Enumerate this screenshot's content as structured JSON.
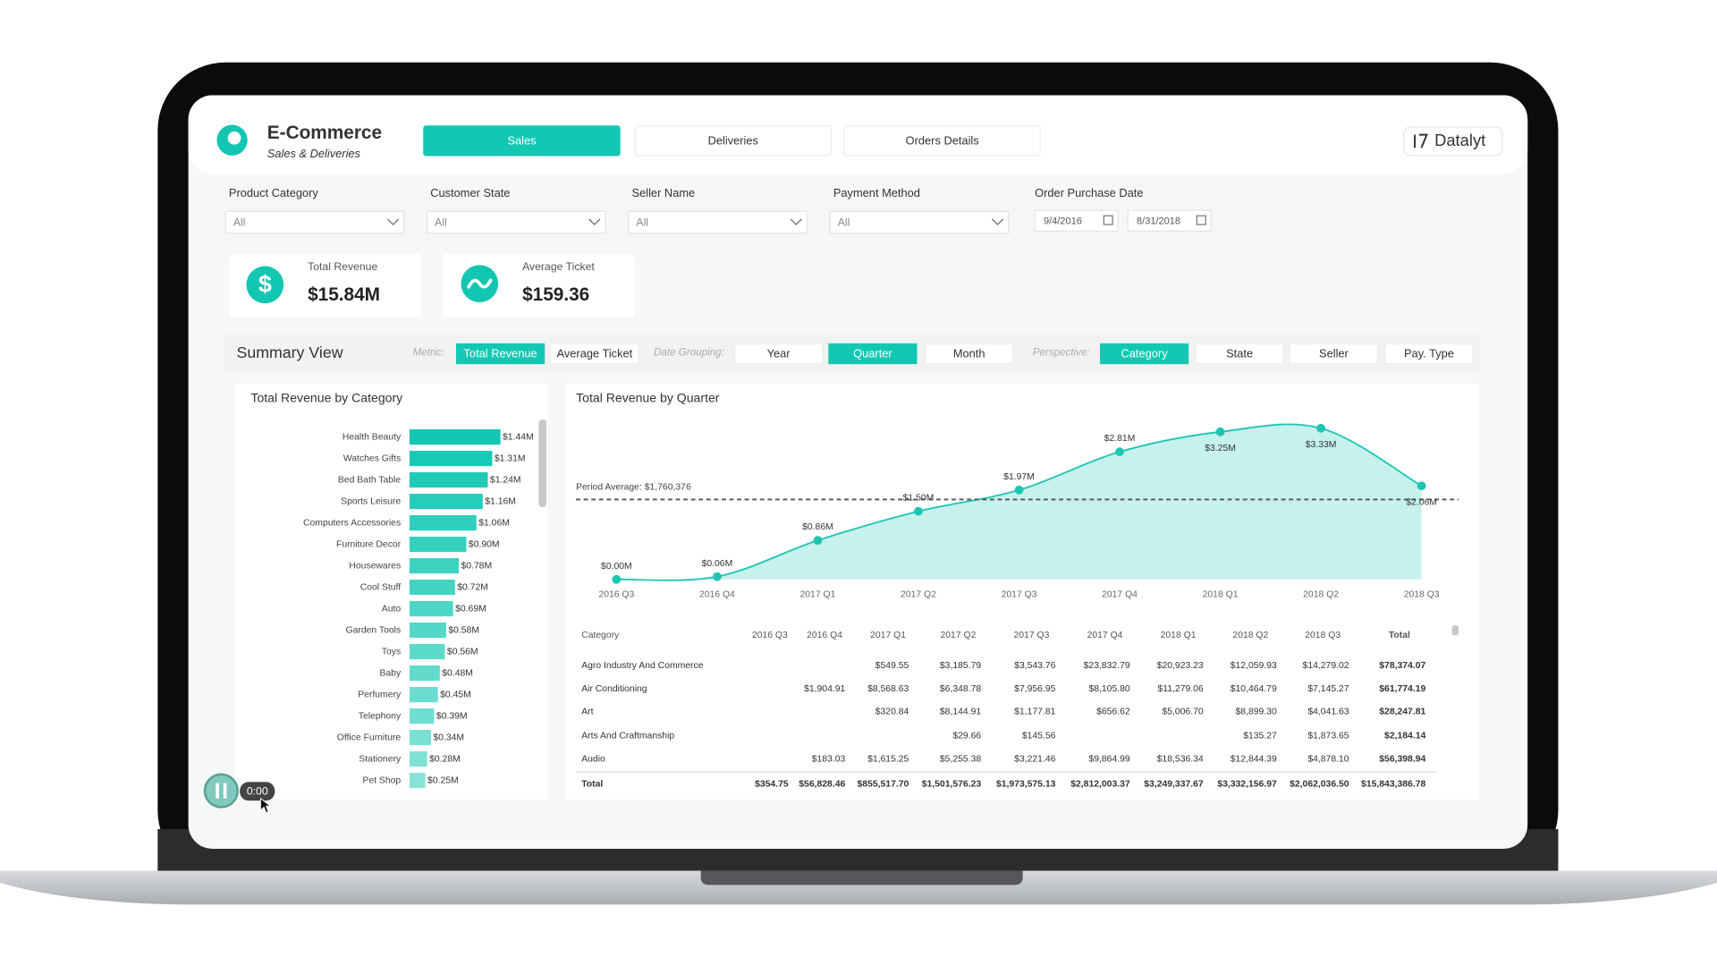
{
  "header": {
    "title": "E-Commerce",
    "subtitle": "Sales & Deliveries",
    "tabs": [
      "Sales",
      "Deliveries",
      "Orders Details"
    ],
    "active_tab": 0,
    "brand": "Datalyt"
  },
  "filters": [
    {
      "label": "Product Category",
      "value": "All"
    },
    {
      "label": "Customer State",
      "value": "All"
    },
    {
      "label": "Seller Name",
      "value": "All"
    },
    {
      "label": "Payment Method",
      "value": "All"
    }
  ],
  "date_filter": {
    "label": "Order Purchase Date",
    "start": "9/4/2016",
    "end": "8/31/2018"
  },
  "kpis": [
    {
      "label": "Total Revenue",
      "value": "$15.84M",
      "icon": "$"
    },
    {
      "label": "Average Ticket",
      "value": "$159.36"
    }
  ],
  "summary": {
    "title": "Summary View",
    "metric_label": "Metric:",
    "metric_options": [
      "Total Revenue",
      "Average Ticket"
    ],
    "metric_selected": 0,
    "date_label": "Date Grouping:",
    "date_options": [
      "Year",
      "Quarter",
      "Month"
    ],
    "date_selected": 1,
    "perspective_label": "Perspective:",
    "perspective_options": [
      "Category",
      "State",
      "Seller",
      "Pay. Type"
    ],
    "perspective_selected": 0
  },
  "bar_chart": {
    "type": "bar",
    "title": "Total Revenue by Category",
    "categories": [
      "Health Beauty",
      "Watches Gifts",
      "Bed Bath Table",
      "Sports Leisure",
      "Computers Accessories",
      "Furniture Decor",
      "Housewares",
      "Cool Stuff",
      "Auto",
      "Garden Tools",
      "Toys",
      "Baby",
      "Perfumery",
      "Telephony",
      "Office Furniture",
      "Stationery",
      "Pet Shop"
    ],
    "values": [
      1.44,
      1.31,
      1.24,
      1.16,
      1.06,
      0.9,
      0.78,
      0.72,
      0.69,
      0.58,
      0.56,
      0.48,
      0.45,
      0.39,
      0.34,
      0.28,
      0.25
    ],
    "value_labels": [
      "$1.44M",
      "$1.31M",
      "$1.24M",
      "$1.16M",
      "$1.06M",
      "$0.90M",
      "$0.78M",
      "$0.72M",
      "$0.69M",
      "$0.58M",
      "$0.56M",
      "$0.48M",
      "$0.45M",
      "$0.39M",
      "$0.34M",
      "$0.28M",
      "$0.25M"
    ],
    "color": "#10c8b3"
  },
  "area_chart": {
    "type": "area",
    "title": "Total Revenue by Quarter",
    "categories": [
      "2016 Q3",
      "2016 Q4",
      "2017 Q1",
      "2017 Q2",
      "2017 Q3",
      "2017 Q4",
      "2018 Q1",
      "2018 Q2",
      "2018 Q3"
    ],
    "values": [
      0.0,
      0.06,
      0.86,
      1.5,
      1.97,
      2.81,
      3.25,
      3.33,
      2.06
    ],
    "value_labels": [
      "$0.00M",
      "$0.06M",
      "$0.86M",
      "$1.50M",
      "$1.97M",
      "$2.81M",
      "$3.25M",
      "$3.33M",
      "$2.06M"
    ],
    "average": 1.760376,
    "average_label": "Period Average: $1,760,376",
    "color": "#1cc6b2"
  },
  "table": {
    "columns": [
      "Category",
      "2016 Q3",
      "2016 Q4",
      "2017 Q1",
      "2017 Q2",
      "2017 Q3",
      "2017 Q4",
      "2018 Q1",
      "2018 Q2",
      "2018 Q3",
      "Total"
    ],
    "rows": [
      [
        "Agro Industry And Commerce",
        null,
        null,
        "$549.55",
        "$3,185.79",
        "$3,543.76",
        "$23,832.79",
        "$20,923.23",
        "$12,059.93",
        "$14,279.02",
        "$78,374.07"
      ],
      [
        "Air Conditioning",
        null,
        "$1,904.91",
        "$8,568.63",
        "$6,348.78",
        "$7,956.95",
        "$8,105.80",
        "$11,279.06",
        "$10,464.79",
        "$7,145.27",
        "$61,774.19"
      ],
      [
        "Art",
        null,
        null,
        "$320.84",
        "$8,144.91",
        "$1,177.81",
        "$656.62",
        "$5,006.70",
        "$8,899.30",
        "$4,041.63",
        "$28,247.81"
      ],
      [
        "Arts And Craftmanship",
        null,
        null,
        null,
        "$29.66",
        "$145.56",
        null,
        null,
        "$135.27",
        "$1,873.65",
        "$2,184.14"
      ],
      [
        "Audio",
        null,
        "$183.03",
        "$1,615.25",
        "$5,255.38",
        "$3,221.46",
        "$9,864.99",
        "$18,536.34",
        "$12,844.39",
        "$4,878.10",
        "$56,398.94"
      ],
      [
        "Total",
        "$354.75",
        "$56,828.46",
        "$855,517.70",
        "$1,501,576.23",
        "$1,973,575.13",
        "$2,812,003.37",
        "$3,249,337.67",
        "$3,332,156.97",
        "$2,062,036.50",
        "$15,843,386.78"
      ]
    ]
  },
  "player": {
    "time": "0:00"
  }
}
